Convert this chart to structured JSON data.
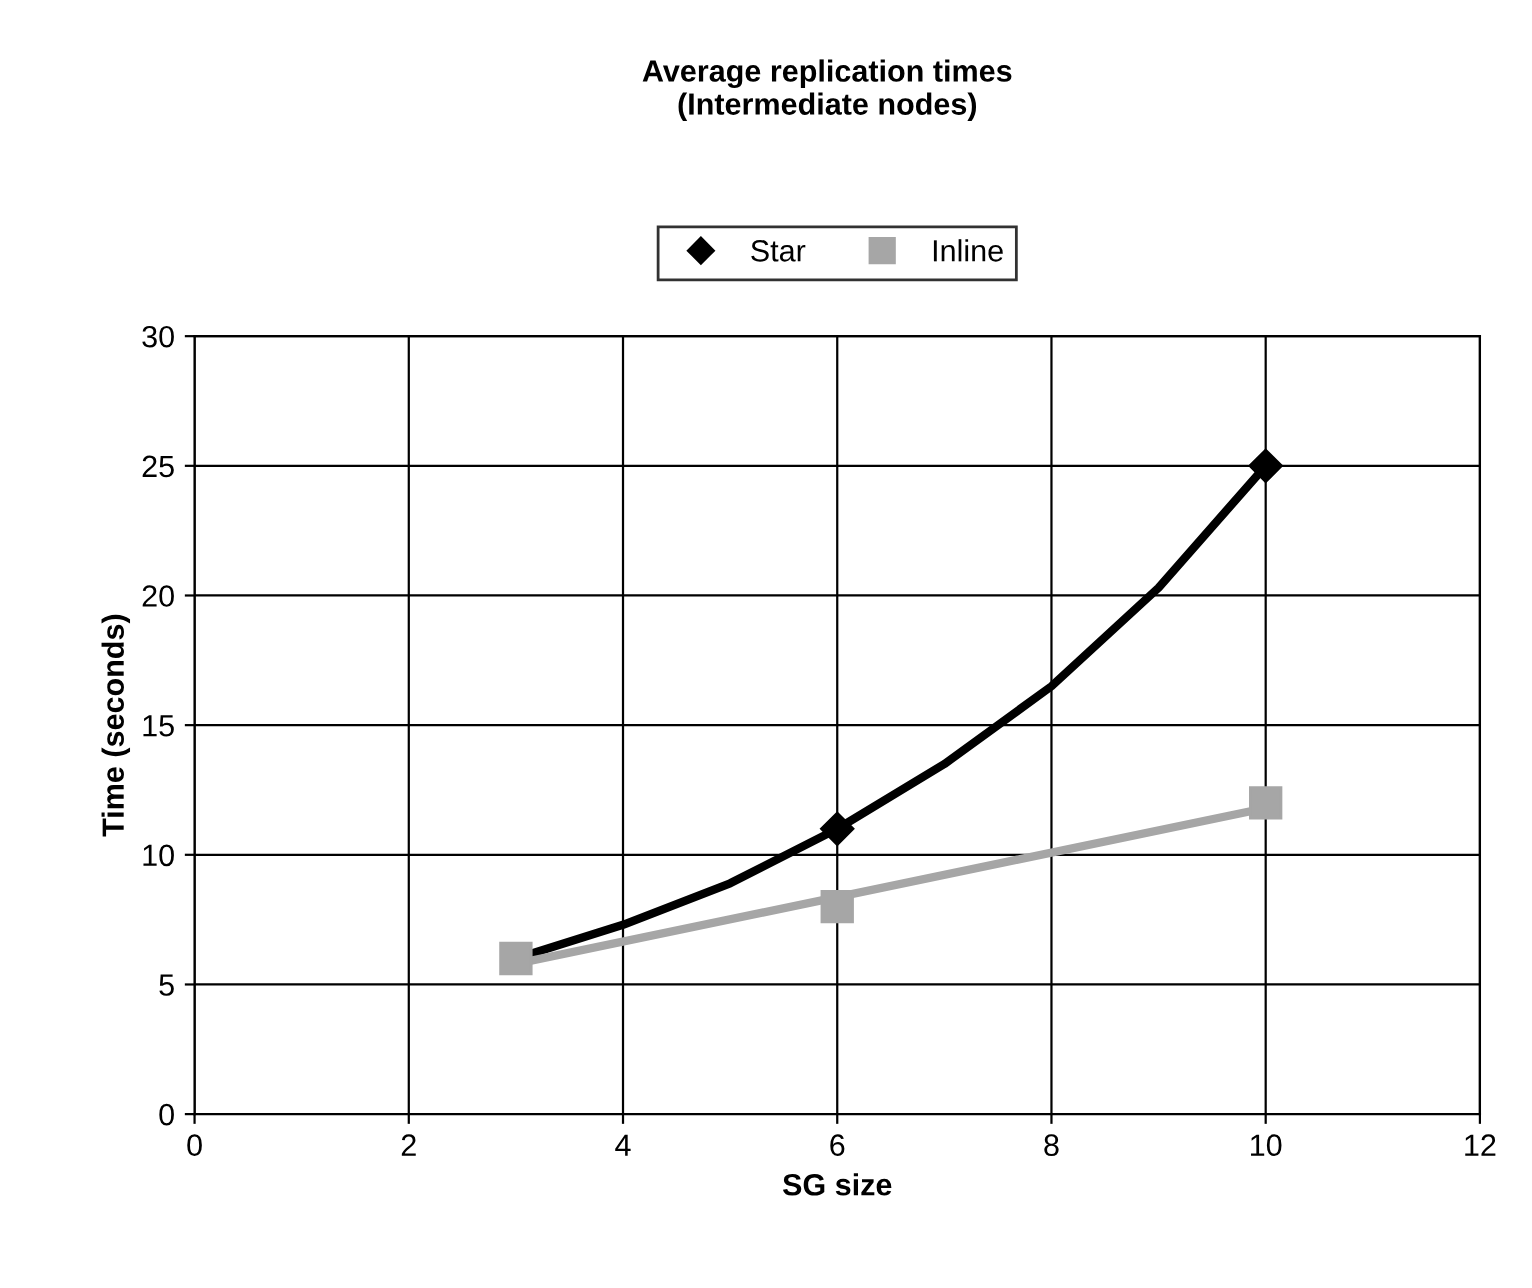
{
  "chart_data": {
    "type": "scatter",
    "title": "Average replication times\n(Intermediate nodes)",
    "xlabel": "SG size",
    "ylabel": "Time (seconds)",
    "xlim": [
      0,
      12
    ],
    "xticks": [
      0,
      2,
      4,
      6,
      8,
      10,
      12
    ],
    "ylim": [
      0,
      30
    ],
    "yticks": [
      0,
      5,
      10,
      15,
      20,
      25,
      30
    ],
    "grid": true,
    "legend": "top",
    "series": [
      {
        "name": "Star",
        "color": "#000000",
        "marker": "diamond",
        "x": [
          6,
          10
        ],
        "values": [
          11,
          25
        ]
      },
      {
        "name": "Inline",
        "color": "#a6a6a6",
        "marker": "square",
        "x": [
          3,
          6,
          10
        ],
        "values": [
          6,
          8,
          12
        ]
      },
      {
        "type": "line",
        "color": "#000000",
        "marker": "none",
        "x": [
          3,
          4,
          5,
          6,
          7,
          8,
          9,
          10
        ],
        "values": [
          6,
          7.3,
          8.9,
          11,
          13.5,
          16.5,
          20.3,
          25
        ]
      },
      {
        "type": "line",
        "color": "#a6a6a6",
        "marker": "none",
        "x": [
          3,
          10
        ],
        "values": [
          5.8,
          11.8
        ]
      }
    ]
  }
}
